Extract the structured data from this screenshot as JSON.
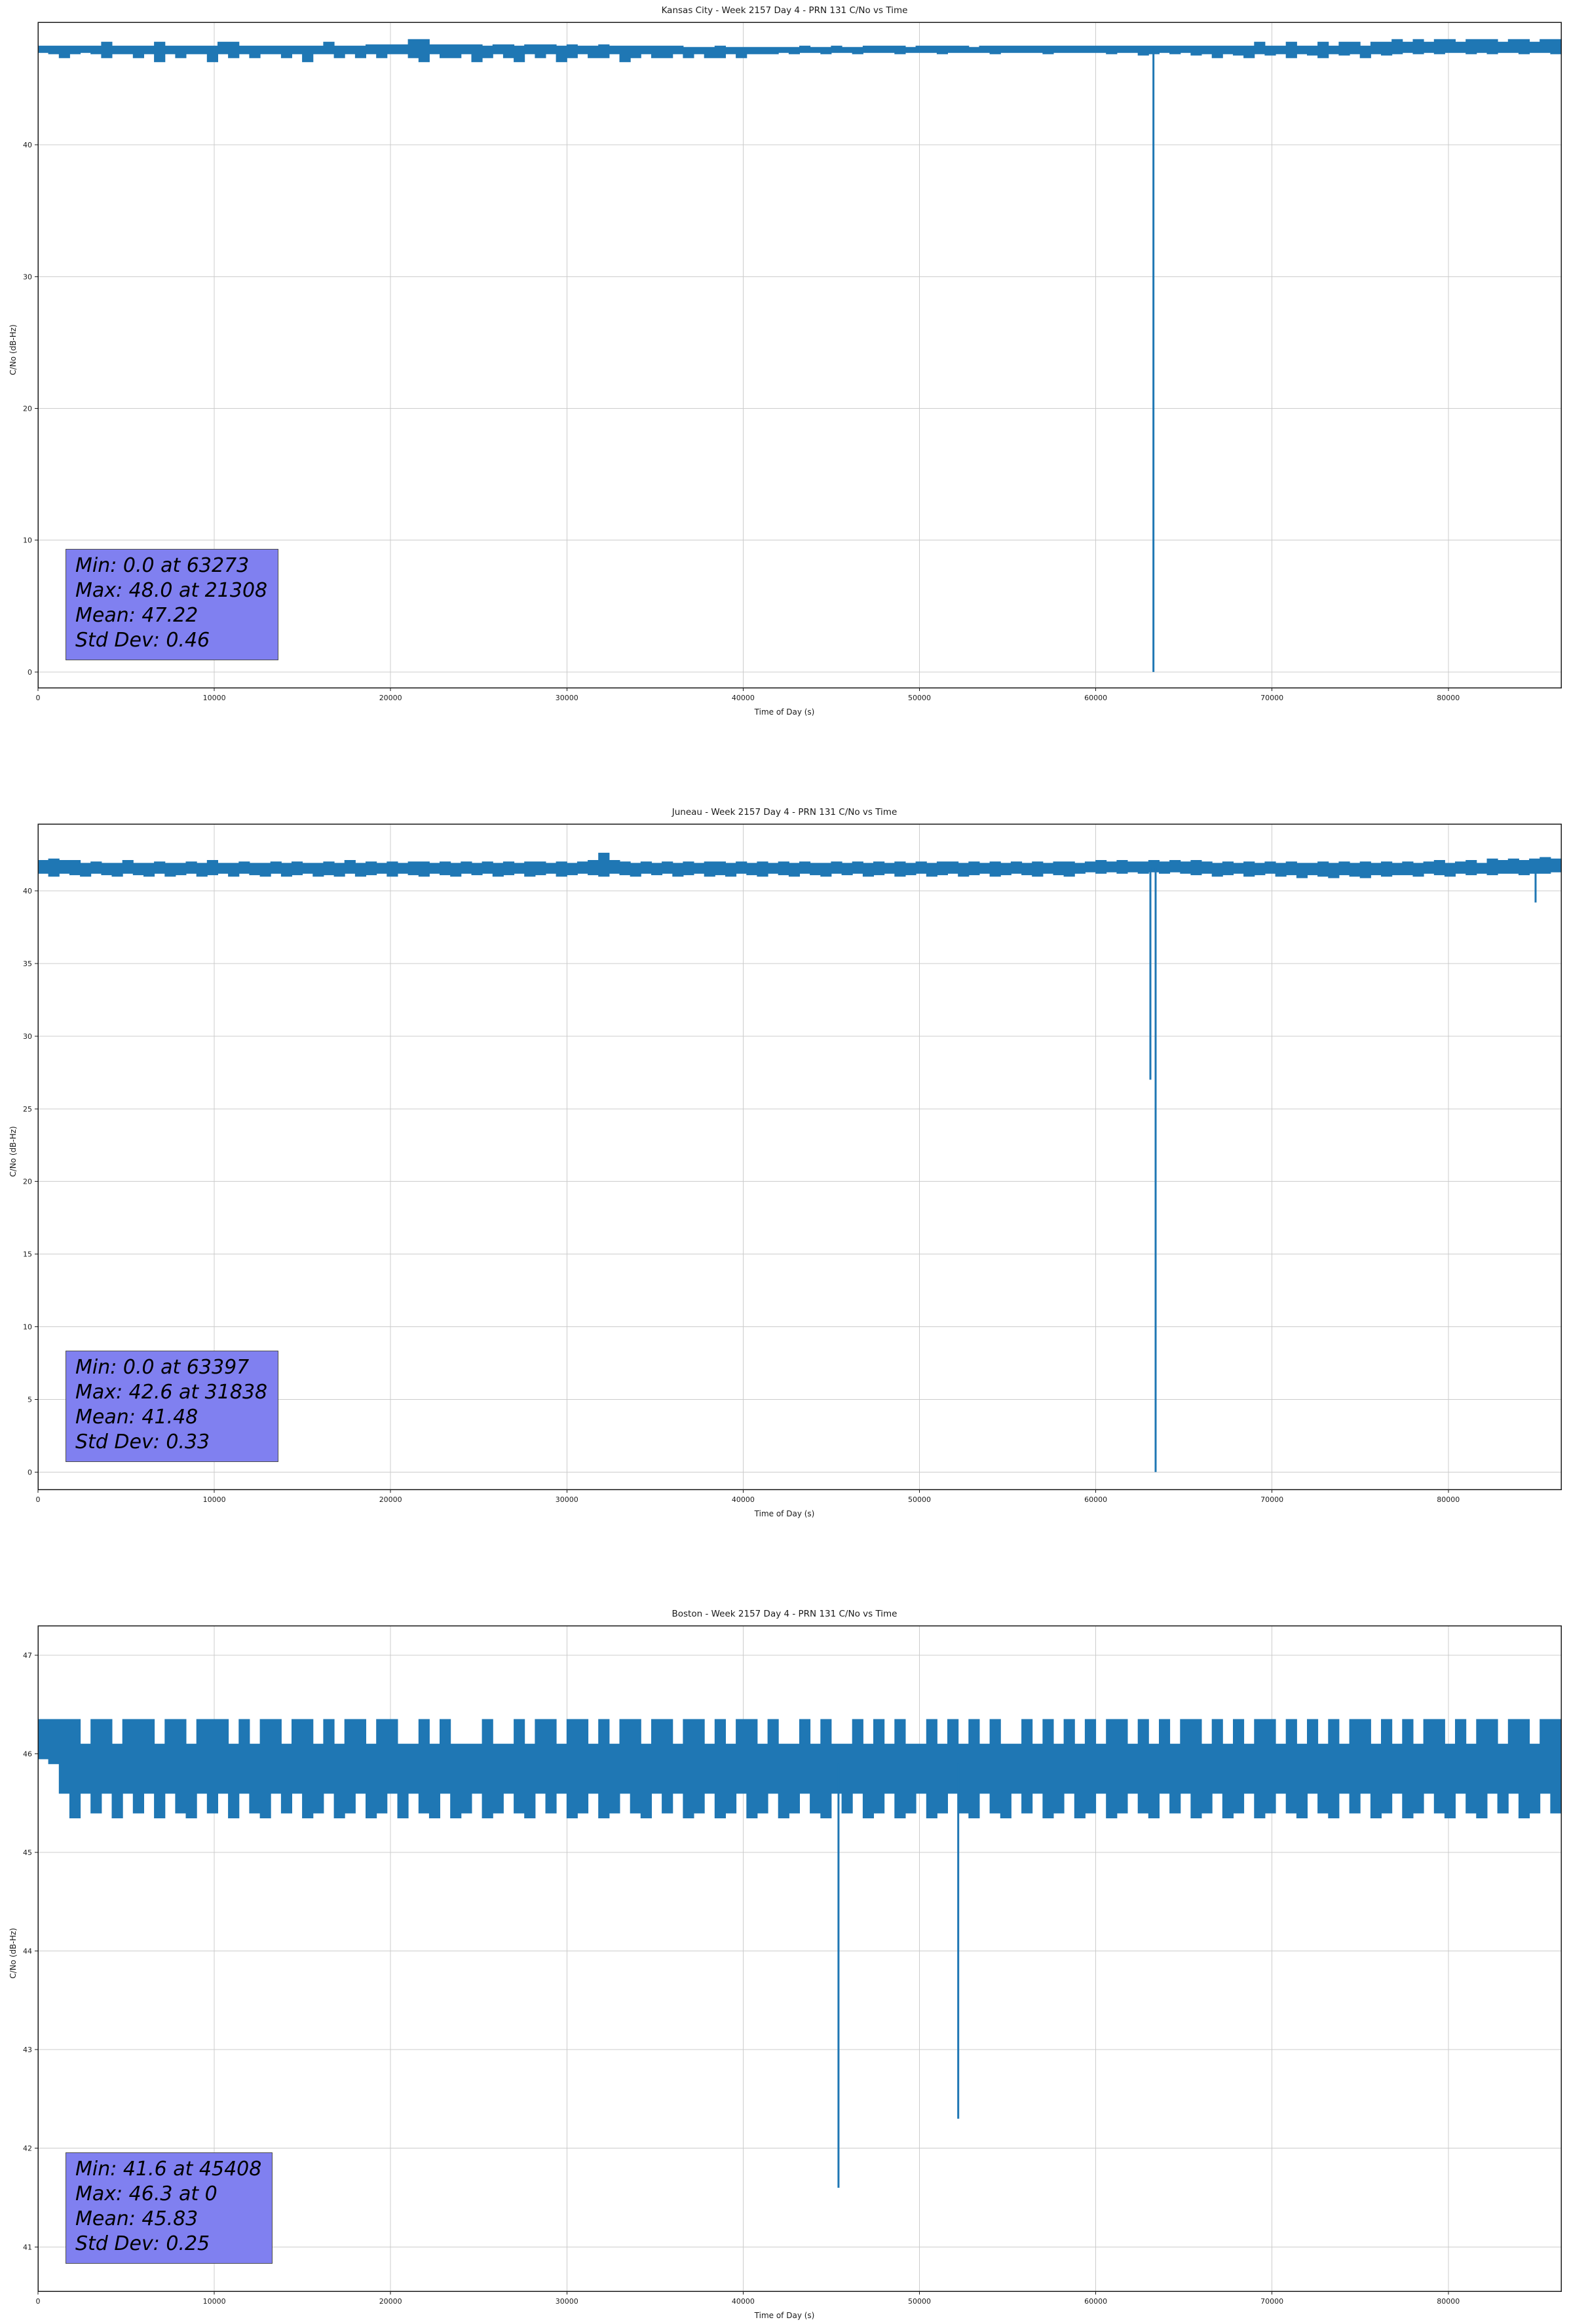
{
  "style": {
    "background": "#ffffff",
    "grid_color": "#cccccc",
    "spine_color": "#1a1a1a",
    "stats_box_bg": "#8080f0",
    "stats_box_border": "#4d4d4d",
    "line_color": "#1f77b4"
  },
  "chart_data": [
    {
      "type": "line",
      "title": "Kansas City - Week 2157 Day 4 - PRN 131 C/No vs Time",
      "xlabel": "Time of Day (s)",
      "ylabel": "C/No (dB-Hz)",
      "xlim": [
        0,
        86400
      ],
      "ylim": [
        -1.2,
        49.3
      ],
      "xticks": [
        0,
        10000,
        20000,
        30000,
        40000,
        50000,
        60000,
        70000,
        80000
      ],
      "yticks": [
        0,
        10,
        20,
        30,
        40
      ],
      "grid": true,
      "legend": false,
      "line_color": "#1f77b4",
      "stats": {
        "min": 0.0,
        "min_at": 63273,
        "max": 48.0,
        "max_at": 21308,
        "mean": 47.22,
        "std_dev": 0.46
      },
      "stats_lines": [
        "Min: 0.0 at 63273",
        "Max: 48.0 at 21308",
        "Mean: 47.22",
        "Std Dev: 0.46"
      ],
      "series": {
        "x_start": 0,
        "x_step": 600,
        "envelope_top": [
          47.5,
          47.5,
          47.5,
          47.5,
          47.5,
          47.5,
          47.8,
          47.5,
          47.5,
          47.5,
          47.5,
          47.8,
          47.5,
          47.5,
          47.5,
          47.5,
          47.5,
          47.8,
          47.8,
          47.5,
          47.5,
          47.5,
          47.5,
          47.5,
          47.5,
          47.5,
          47.5,
          47.8,
          47.5,
          47.5,
          47.5,
          47.6,
          47.6,
          47.6,
          47.6,
          48.0,
          48.0,
          47.6,
          47.6,
          47.6,
          47.6,
          47.6,
          47.5,
          47.6,
          47.6,
          47.5,
          47.6,
          47.6,
          47.6,
          47.5,
          47.6,
          47.5,
          47.5,
          47.6,
          47.5,
          47.5,
          47.5,
          47.5,
          47.5,
          47.5,
          47.5,
          47.4,
          47.4,
          47.4,
          47.5,
          47.4,
          47.4,
          47.4,
          47.4,
          47.4,
          47.4,
          47.4,
          47.5,
          47.4,
          47.4,
          47.5,
          47.4,
          47.4,
          47.5,
          47.5,
          47.5,
          47.5,
          47.4,
          47.5,
          47.5,
          47.5,
          47.5,
          47.5,
          47.4,
          47.5,
          47.5,
          47.5,
          47.5,
          47.5,
          47.5,
          47.5,
          47.5,
          47.5,
          47.5,
          47.5,
          47.5,
          47.5,
          47.5,
          47.5,
          47.5,
          47.5,
          47.5,
          47.5,
          47.5,
          47.5,
          47.5,
          47.5,
          47.5,
          47.5,
          47.5,
          47.8,
          47.5,
          47.5,
          47.8,
          47.5,
          47.5,
          47.8,
          47.5,
          47.8,
          47.8,
          47.5,
          47.8,
          47.8,
          48.0,
          47.8,
          48.0,
          47.8,
          48.0,
          48.0,
          47.8,
          48.0,
          48.0,
          48.0,
          47.8,
          48.0,
          48.0,
          47.8,
          48.0,
          48.0,
          47.8
        ],
        "envelope_bottom": [
          46.9,
          47.0,
          46.9,
          46.6,
          46.9,
          47.0,
          46.9,
          46.6,
          46.9,
          46.9,
          46.6,
          46.9,
          46.3,
          46.9,
          46.6,
          46.9,
          46.9,
          46.3,
          46.9,
          46.6,
          46.9,
          46.6,
          46.9,
          46.9,
          46.6,
          46.9,
          46.3,
          46.9,
          46.9,
          46.6,
          46.9,
          46.6,
          46.9,
          46.6,
          46.9,
          46.9,
          46.6,
          46.3,
          46.9,
          46.6,
          46.6,
          46.9,
          46.3,
          46.6,
          46.9,
          46.6,
          46.3,
          46.9,
          46.6,
          46.9,
          46.3,
          46.6,
          46.9,
          46.6,
          46.6,
          46.9,
          46.3,
          46.6,
          46.9,
          46.6,
          46.6,
          46.9,
          46.6,
          46.9,
          46.6,
          46.6,
          46.9,
          46.6,
          46.9,
          46.9,
          46.9,
          47.0,
          46.9,
          47.0,
          47.0,
          46.9,
          47.0,
          47.0,
          46.9,
          47.0,
          47.0,
          47.0,
          46.9,
          47.0,
          47.0,
          47.0,
          46.9,
          47.0,
          47.0,
          47.0,
          47.0,
          46.9,
          47.0,
          47.0,
          47.0,
          47.0,
          46.9,
          47.0,
          47.0,
          47.0,
          47.0,
          47.0,
          46.9,
          47.0,
          47.0,
          46.8,
          46.9,
          47.0,
          46.9,
          47.0,
          46.8,
          46.9,
          46.6,
          46.9,
          46.8,
          46.6,
          46.9,
          46.8,
          46.9,
          46.6,
          46.9,
          46.8,
          46.6,
          46.9,
          46.8,
          46.9,
          46.6,
          46.9,
          46.8,
          46.9,
          47.0,
          46.9,
          47.0,
          46.9,
          47.0,
          47.0,
          46.9,
          47.0,
          46.9,
          47.0,
          47.0,
          46.9,
          47.0,
          47.0,
          46.9
        ]
      },
      "spikes": [
        {
          "x": 63273,
          "from": 47.3,
          "to": 0.0
        }
      ]
    },
    {
      "type": "line",
      "title": "Juneau - Week 2157 Day 4 - PRN 131 C/No vs Time",
      "xlabel": "Time of Day (s)",
      "ylabel": "C/No (dB-Hz)",
      "xlim": [
        0,
        86400
      ],
      "ylim": [
        -1.2,
        44.6
      ],
      "xticks": [
        0,
        10000,
        20000,
        30000,
        40000,
        50000,
        60000,
        70000,
        80000
      ],
      "yticks": [
        0,
        5,
        10,
        15,
        20,
        25,
        30,
        35,
        40
      ],
      "grid": true,
      "legend": false,
      "line_color": "#1f77b4",
      "stats": {
        "min": 0.0,
        "min_at": 63397,
        "max": 42.6,
        "max_at": 31838,
        "mean": 41.48,
        "std_dev": 0.33
      },
      "stats_lines": [
        "Min: 0.0 at 63397",
        "Max: 42.6 at 31838",
        "Mean: 41.48",
        "Std Dev: 0.33"
      ],
      "series": {
        "x_start": 0,
        "x_step": 600,
        "envelope_top": [
          42.1,
          42.2,
          42.1,
          42.1,
          41.9,
          42.0,
          41.9,
          41.9,
          42.1,
          41.9,
          41.9,
          42.0,
          41.9,
          41.9,
          42.0,
          41.9,
          42.1,
          41.9,
          41.9,
          42.0,
          41.9,
          41.9,
          42.0,
          41.9,
          42.0,
          41.9,
          41.9,
          42.0,
          41.9,
          42.1,
          41.9,
          42.0,
          41.9,
          42.0,
          41.9,
          42.0,
          42.0,
          41.9,
          42.0,
          41.9,
          42.0,
          41.9,
          42.0,
          41.9,
          42.0,
          41.9,
          42.0,
          42.0,
          41.9,
          42.0,
          41.9,
          42.0,
          42.1,
          42.6,
          42.1,
          42.0,
          41.9,
          42.0,
          41.9,
          42.0,
          41.9,
          42.0,
          41.9,
          42.0,
          42.0,
          41.9,
          42.0,
          41.9,
          42.0,
          41.9,
          42.0,
          41.9,
          42.0,
          41.9,
          41.9,
          42.0,
          41.9,
          42.0,
          41.9,
          42.0,
          41.9,
          42.0,
          41.9,
          42.0,
          41.9,
          42.0,
          42.0,
          41.9,
          42.0,
          41.9,
          42.0,
          41.9,
          42.0,
          41.9,
          42.0,
          41.9,
          42.0,
          42.0,
          41.9,
          42.0,
          42.1,
          42.0,
          42.1,
          42.0,
          42.0,
          42.1,
          42.0,
          42.1,
          42.0,
          42.1,
          42.0,
          41.9,
          42.0,
          41.9,
          42.0,
          41.9,
          42.0,
          41.9,
          42.0,
          41.9,
          41.9,
          42.0,
          41.9,
          42.0,
          41.9,
          42.0,
          41.9,
          42.0,
          41.9,
          42.0,
          41.9,
          42.0,
          42.1,
          41.9,
          42.0,
          42.1,
          41.9,
          42.2,
          42.1,
          42.2,
          42.1,
          42.2,
          42.3,
          42.2,
          42.3
        ],
        "envelope_bottom": [
          41.1,
          41.2,
          41.0,
          41.2,
          41.1,
          41.0,
          41.2,
          41.1,
          41.0,
          41.2,
          41.1,
          41.0,
          41.2,
          41.0,
          41.1,
          41.2,
          41.0,
          41.1,
          41.2,
          41.0,
          41.2,
          41.1,
          41.0,
          41.2,
          41.0,
          41.1,
          41.2,
          41.0,
          41.1,
          41.0,
          41.2,
          41.0,
          41.1,
          41.2,
          41.0,
          41.2,
          41.1,
          41.0,
          41.2,
          41.1,
          41.0,
          41.2,
          41.1,
          41.2,
          41.0,
          41.1,
          41.2,
          41.0,
          41.1,
          41.2,
          41.0,
          41.1,
          41.2,
          41.1,
          41.0,
          41.2,
          41.1,
          41.0,
          41.2,
          41.1,
          41.2,
          41.0,
          41.1,
          41.2,
          41.0,
          41.1,
          41.0,
          41.2,
          41.1,
          41.0,
          41.2,
          41.1,
          41.0,
          41.2,
          41.1,
          41.0,
          41.2,
          41.1,
          41.2,
          41.0,
          41.1,
          41.2,
          41.0,
          41.1,
          41.2,
          41.0,
          41.1,
          41.2,
          41.0,
          41.1,
          41.2,
          41.0,
          41.1,
          41.2,
          41.1,
          41.0,
          41.2,
          41.1,
          41.0,
          41.2,
          41.3,
          41.2,
          41.3,
          41.2,
          41.3,
          41.2,
          41.3,
          41.2,
          41.3,
          41.2,
          41.1,
          41.2,
          41.0,
          41.1,
          41.2,
          41.0,
          41.1,
          41.2,
          41.0,
          41.1,
          40.9,
          41.1,
          41.0,
          40.9,
          41.1,
          41.0,
          40.9,
          41.1,
          41.0,
          41.1,
          41.1,
          41.0,
          41.2,
          41.1,
          41.0,
          41.2,
          41.1,
          41.2,
          41.1,
          41.2,
          41.2,
          41.1,
          41.2,
          41.2,
          41.3
        ]
      },
      "spikes": [
        {
          "x": 63100,
          "from": 41.6,
          "to": 27.0
        },
        {
          "x": 63397,
          "from": 41.6,
          "to": 0.0
        },
        {
          "x": 84950,
          "from": 41.2,
          "to": 39.2
        }
      ]
    },
    {
      "type": "line",
      "title": "Boston - Week 2157 Day 4 - PRN 131 C/No vs Time",
      "xlabel": "Time of Day (s)",
      "ylabel": "C/No (dB-Hz)",
      "xlim": [
        0,
        86400
      ],
      "ylim": [
        40.55,
        47.3
      ],
      "xticks": [
        0,
        10000,
        20000,
        30000,
        40000,
        50000,
        60000,
        70000,
        80000
      ],
      "yticks": [
        41,
        42,
        43,
        44,
        45,
        46,
        47
      ],
      "grid": true,
      "legend": false,
      "line_color": "#1f77b4",
      "stats": {
        "min": 41.6,
        "min_at": 45408,
        "max": 46.3,
        "max_at": 0,
        "mean": 45.83,
        "std_dev": 0.25
      },
      "stats_lines": [
        "Min: 41.6 at 45408",
        "Max: 46.3 at 0",
        "Mean: 45.83",
        "Std Dev: 0.25"
      ],
      "series": {
        "x_start": 0,
        "x_step": 600,
        "envelope_top": [
          46.35,
          46.35,
          46.35,
          46.35,
          46.1,
          46.35,
          46.35,
          46.1,
          46.35,
          46.35,
          46.35,
          46.1,
          46.35,
          46.35,
          46.1,
          46.35,
          46.35,
          46.35,
          46.1,
          46.35,
          46.1,
          46.35,
          46.35,
          46.1,
          46.35,
          46.35,
          46.1,
          46.35,
          46.1,
          46.35,
          46.35,
          46.1,
          46.35,
          46.35,
          46.1,
          46.1,
          46.35,
          46.1,
          46.35,
          46.1,
          46.1,
          46.1,
          46.35,
          46.1,
          46.1,
          46.35,
          46.1,
          46.35,
          46.35,
          46.1,
          46.35,
          46.35,
          46.1,
          46.35,
          46.1,
          46.35,
          46.35,
          46.1,
          46.35,
          46.35,
          46.1,
          46.35,
          46.35,
          46.1,
          46.35,
          46.1,
          46.35,
          46.35,
          46.1,
          46.35,
          46.1,
          46.1,
          46.35,
          46.1,
          46.35,
          46.1,
          46.1,
          46.35,
          46.1,
          46.35,
          46.1,
          46.35,
          46.1,
          46.1,
          46.35,
          46.1,
          46.35,
          46.1,
          46.35,
          46.1,
          46.35,
          46.1,
          46.1,
          46.35,
          46.1,
          46.35,
          46.1,
          46.35,
          46.1,
          46.35,
          46.1,
          46.35,
          46.35,
          46.1,
          46.35,
          46.1,
          46.35,
          46.1,
          46.35,
          46.35,
          46.1,
          46.35,
          46.1,
          46.35,
          46.1,
          46.35,
          46.35,
          46.1,
          46.35,
          46.1,
          46.35,
          46.1,
          46.35,
          46.1,
          46.35,
          46.35,
          46.1,
          46.35,
          46.1,
          46.35,
          46.1,
          46.35,
          46.35,
          46.1,
          46.35,
          46.1,
          46.35,
          46.35,
          46.1,
          46.35,
          46.35,
          46.1,
          46.35,
          46.35,
          46.1
        ],
        "envelope_bottom": [
          45.95,
          45.95,
          45.9,
          45.6,
          45.35,
          45.6,
          45.4,
          45.6,
          45.35,
          45.6,
          45.4,
          45.6,
          45.35,
          45.6,
          45.4,
          45.35,
          45.6,
          45.4,
          45.6,
          45.35,
          45.6,
          45.4,
          45.35,
          45.6,
          45.4,
          45.6,
          45.35,
          45.4,
          45.6,
          45.35,
          45.4,
          45.6,
          45.35,
          45.4,
          45.6,
          45.35,
          45.6,
          45.4,
          45.35,
          45.6,
          45.35,
          45.4,
          45.6,
          45.35,
          45.4,
          45.6,
          45.4,
          45.35,
          45.6,
          45.4,
          45.6,
          45.35,
          45.4,
          45.6,
          45.35,
          45.4,
          45.6,
          45.4,
          45.35,
          45.6,
          45.4,
          45.6,
          45.35,
          45.4,
          45.6,
          45.35,
          45.4,
          45.6,
          45.35,
          45.4,
          45.6,
          45.35,
          45.4,
          45.6,
          45.4,
          45.35,
          45.6,
          45.4,
          45.6,
          45.35,
          45.4,
          45.6,
          45.35,
          45.4,
          45.6,
          45.35,
          45.4,
          45.6,
          45.4,
          45.35,
          45.6,
          45.4,
          45.35,
          45.6,
          45.4,
          45.6,
          45.35,
          45.4,
          45.6,
          45.35,
          45.4,
          45.6,
          45.35,
          45.4,
          45.6,
          45.4,
          45.35,
          45.6,
          45.4,
          45.6,
          45.35,
          45.4,
          45.6,
          45.35,
          45.4,
          45.6,
          45.35,
          45.4,
          45.6,
          45.4,
          45.35,
          45.6,
          45.4,
          45.35,
          45.6,
          45.4,
          45.6,
          45.35,
          45.4,
          45.6,
          45.35,
          45.4,
          45.6,
          45.4,
          45.35,
          45.6,
          45.4,
          45.35,
          45.6,
          45.4,
          45.6,
          45.35,
          45.4,
          45.6,
          45.4
        ],
        "x_unit": "s"
      },
      "spikes": [
        {
          "x": 45408,
          "from": 45.9,
          "to": 41.6
        },
        {
          "x": 52200,
          "from": 45.9,
          "to": 42.3
        }
      ]
    }
  ]
}
